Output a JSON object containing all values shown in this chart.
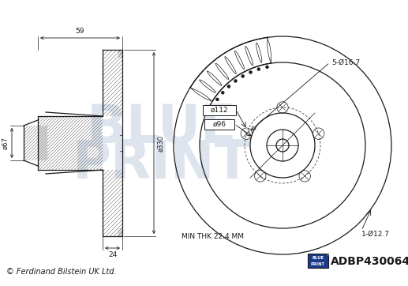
{
  "bg_color": "#ffffff",
  "line_color": "#1a1a1a",
  "watermark_color": "#dde4ee",
  "title_part": "ADBP430064",
  "copyright_text": "© Ferdinand Bilstein UK Ltd.",
  "min_thk_text": "MIN THK 22.4 MM",
  "dim_67": "ø67",
  "dim_330": "ø330",
  "dim_96": "ø96",
  "dim_112": "ø112",
  "dim_5holes": "5-Ø16.7",
  "dim_1hole": "1-Ø12.7",
  "dim_59": "59",
  "dim_24": "24",
  "hatch_color": "#444444"
}
